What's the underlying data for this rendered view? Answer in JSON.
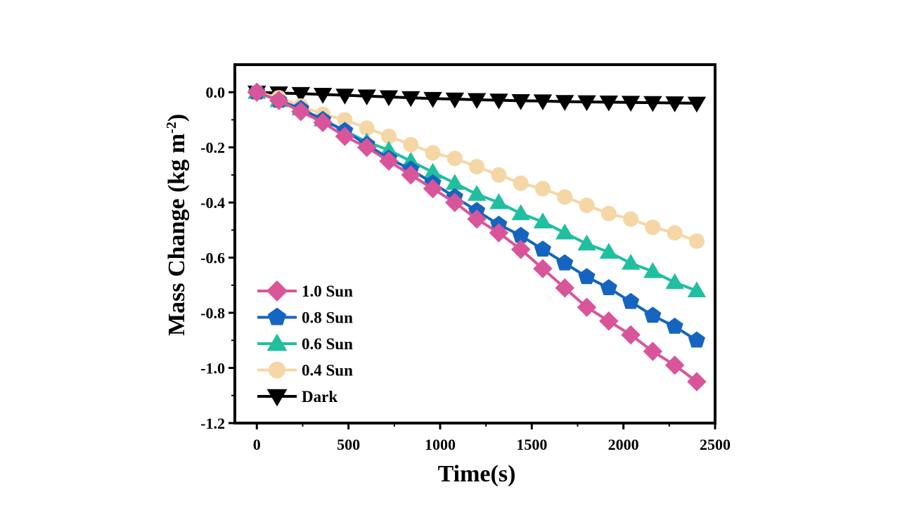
{
  "chart_data": {
    "type": "line",
    "title": "",
    "xlabel": "Time(s)",
    "ylabel_main": "Mass Change (kg m",
    "ylabel_sup": "-2",
    "ylabel_close": ")",
    "xlim": [
      -120,
      2500
    ],
    "ylim": [
      -1.2,
      0.1
    ],
    "xticks": [
      0,
      500,
      1000,
      1500,
      2000,
      2500
    ],
    "xtick_labels": [
      "0",
      "500",
      "1000",
      "1500",
      "2000",
      "2500"
    ],
    "yticks": [
      0.0,
      -0.2,
      -0.4,
      -0.6,
      -0.8,
      -1.0,
      -1.2
    ],
    "ytick_labels": [
      "0.0",
      "-0.2",
      "-0.4",
      "-0.6",
      "-0.8",
      "-1.0",
      "-1.2"
    ],
    "grid": false,
    "legend_position": "bottom-left",
    "x": [
      0,
      120,
      240,
      360,
      480,
      600,
      720,
      840,
      960,
      1080,
      1200,
      1320,
      1440,
      1560,
      1680,
      1800,
      1920,
      2040,
      2160,
      2280,
      2400
    ],
    "series": [
      {
        "name": "1.0 Sun",
        "color": "#d9559a",
        "marker": "diamond",
        "values": [
          0,
          -0.03,
          -0.07,
          -0.11,
          -0.16,
          -0.2,
          -0.25,
          -0.3,
          -0.35,
          -0.4,
          -0.46,
          -0.51,
          -0.57,
          -0.64,
          -0.71,
          -0.78,
          -0.83,
          -0.88,
          -0.94,
          -0.99,
          -1.05
        ]
      },
      {
        "name": "0.8 Sun",
        "color": "#1565c0",
        "marker": "pentagon",
        "values": [
          0,
          -0.03,
          -0.06,
          -0.1,
          -0.14,
          -0.19,
          -0.24,
          -0.28,
          -0.33,
          -0.38,
          -0.43,
          -0.48,
          -0.52,
          -0.57,
          -0.62,
          -0.67,
          -0.71,
          -0.76,
          -0.81,
          -0.85,
          -0.9
        ]
      },
      {
        "name": "0.6 Sun",
        "color": "#1fbf9f",
        "marker": "triangle-up",
        "values": [
          0,
          -0.03,
          -0.06,
          -0.1,
          -0.14,
          -0.18,
          -0.21,
          -0.25,
          -0.29,
          -0.33,
          -0.37,
          -0.4,
          -0.44,
          -0.47,
          -0.51,
          -0.55,
          -0.58,
          -0.62,
          -0.65,
          -0.69,
          -0.72
        ]
      },
      {
        "name": "0.4 Sun",
        "color": "#f5d7a6",
        "marker": "circle",
        "values": [
          0,
          -0.02,
          -0.05,
          -0.08,
          -0.1,
          -0.13,
          -0.16,
          -0.19,
          -0.22,
          -0.24,
          -0.27,
          -0.3,
          -0.33,
          -0.35,
          -0.38,
          -0.41,
          -0.44,
          -0.46,
          -0.49,
          -0.51,
          -0.54
        ]
      },
      {
        "name": "Dark",
        "color": "#000000",
        "marker": "triangle-down",
        "values": [
          0,
          -0.003,
          -0.005,
          -0.008,
          -0.011,
          -0.014,
          -0.017,
          -0.02,
          -0.023,
          -0.025,
          -0.027,
          -0.029,
          -0.031,
          -0.032,
          -0.034,
          -0.035,
          -0.036,
          -0.037,
          -0.038,
          -0.039,
          -0.04
        ]
      }
    ]
  }
}
